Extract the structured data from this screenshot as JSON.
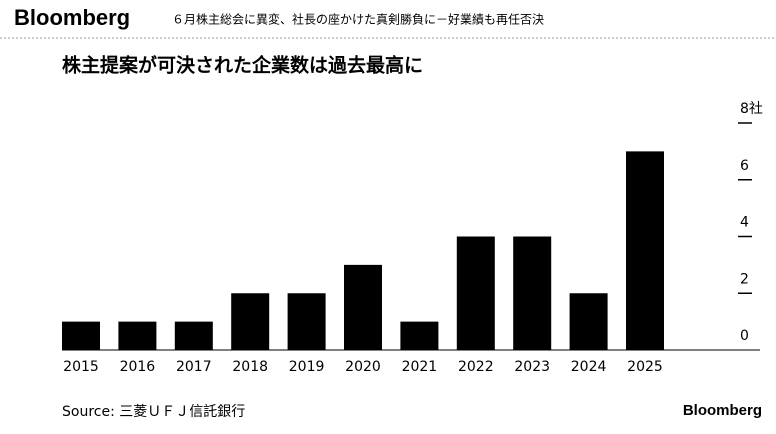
{
  "header": {
    "logo": "Bloomberg",
    "headline": "６月株主総会に異変、社長の座かけた真剣勝負に－好業績も再任否決"
  },
  "chart_data": {
    "type": "bar",
    "title": "株主提案が可決された企業数は過去最高に",
    "categories": [
      "2015",
      "2016",
      "2017",
      "2018",
      "2019",
      "2020",
      "2021",
      "2022",
      "2023",
      "2024",
      "2025"
    ],
    "values": [
      1,
      1,
      1,
      2,
      2,
      3,
      1,
      4,
      4,
      2,
      7
    ],
    "color": "#000000",
    "ylim": [
      0,
      8
    ],
    "yticks": [
      0,
      2,
      4,
      6,
      {
        "value": 8,
        "label": "8社"
      }
    ],
    "source": "Source: 三菱ＵＦＪ信託銀行",
    "footer_logo": "Bloomberg"
  }
}
